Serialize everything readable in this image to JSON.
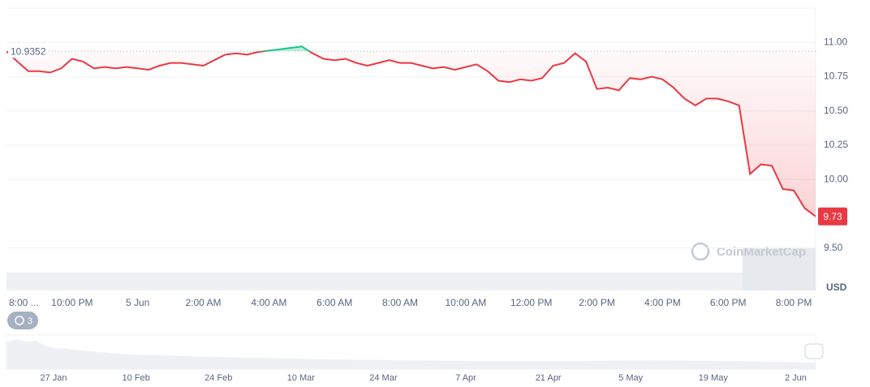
{
  "chart_data": {
    "type": "line",
    "unit": "USD",
    "categories": [
      "8:00 ...",
      null,
      null,
      null,
      null,
      null,
      "10:00 PM",
      null,
      null,
      null,
      null,
      null,
      "5 Jun",
      null,
      null,
      null,
      null,
      null,
      "2:00 AM",
      null,
      null,
      null,
      null,
      null,
      "4:00 AM",
      null,
      null,
      null,
      null,
      null,
      "6:00 AM",
      null,
      null,
      null,
      null,
      null,
      "8:00 AM",
      null,
      null,
      null,
      null,
      null,
      "10:00 AM",
      null,
      null,
      null,
      null,
      null,
      "12:00 PM",
      null,
      null,
      null,
      null,
      null,
      "2:00 PM",
      null,
      null,
      null,
      null,
      null,
      "4:00 PM",
      null,
      null,
      null,
      null,
      null,
      "6:00 PM",
      null,
      null,
      null,
      null,
      null,
      "8:00 PM",
      null,
      null
    ],
    "values": [
      10.935,
      10.86,
      10.79,
      10.79,
      10.78,
      10.81,
      10.88,
      10.86,
      10.81,
      10.82,
      10.81,
      10.82,
      10.81,
      10.8,
      10.83,
      10.85,
      10.85,
      10.84,
      10.83,
      10.87,
      10.91,
      10.92,
      10.91,
      10.93,
      10.94,
      10.95,
      10.96,
      10.97,
      10.92,
      10.88,
      10.87,
      10.88,
      10.85,
      10.83,
      10.85,
      10.87,
      10.85,
      10.85,
      10.83,
      10.81,
      10.82,
      10.8,
      10.82,
      10.84,
      10.79,
      10.72,
      10.71,
      10.73,
      10.72,
      10.74,
      10.83,
      10.85,
      10.92,
      10.86,
      10.66,
      10.67,
      10.65,
      10.74,
      10.73,
      10.75,
      10.73,
      10.67,
      10.59,
      10.54,
      10.59,
      10.59,
      10.57,
      10.54,
      10.04,
      10.11,
      10.1,
      9.93,
      9.92,
      9.79,
      9.73
    ],
    "color": "#ea3943",
    "up_color": "#16c784",
    "reference": 10.9352,
    "ylim": [
      9.19,
      11.25
    ],
    "yticks": [
      {
        "value": 11,
        "label": "11.00"
      },
      {
        "value": 10.75,
        "label": "10.75"
      },
      {
        "value": 10.5,
        "label": "10.50"
      },
      {
        "value": 10.25,
        "label": "10.25"
      },
      {
        "value": 10,
        "label": "10.00"
      },
      {
        "value": 9.5,
        "label": "9.50"
      }
    ],
    "grid": true,
    "watermark": "CoinMarketCap",
    "badge": "3",
    "navigator_labels": [
      "27 Jan",
      "10 Feb",
      "24 Feb",
      "10 Mar",
      "24 Mar",
      "7 Apr",
      "21 Apr",
      "5 May",
      "19 May",
      "2 Jun"
    ]
  }
}
